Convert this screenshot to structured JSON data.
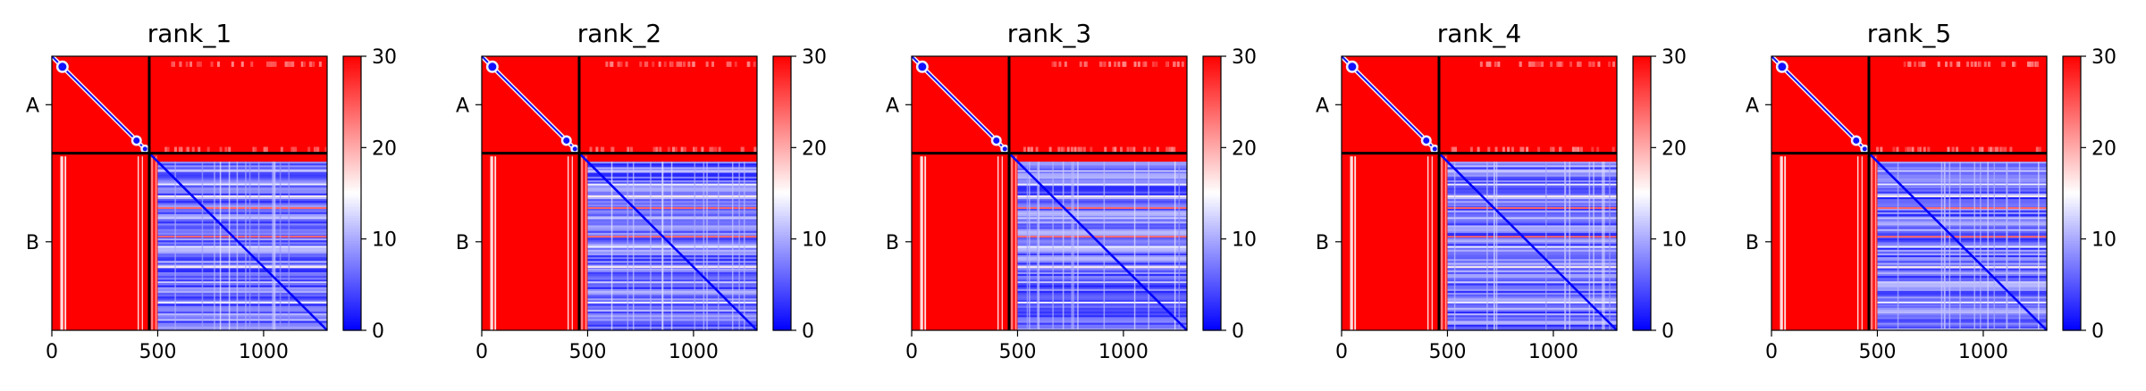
{
  "figure": {
    "type": "heatmap-grid",
    "background": "#ffffff"
  },
  "chart_data": [
    {
      "type": "heatmap",
      "title": "rank_1",
      "chains": [
        "A",
        "B"
      ],
      "chain_boundary": 460,
      "x_ticks": [
        0,
        500,
        1000
      ],
      "xlim": [
        0,
        1300
      ],
      "colorbar": {
        "min": 0,
        "max": 30,
        "ticks": [
          0,
          10,
          20,
          30
        ],
        "colormap": [
          "#0000ff",
          "#ffffff",
          "#ff0000"
        ]
      },
      "variant": 0
    },
    {
      "type": "heatmap",
      "title": "rank_2",
      "chains": [
        "A",
        "B"
      ],
      "chain_boundary": 460,
      "x_ticks": [
        0,
        500,
        1000
      ],
      "xlim": [
        0,
        1300
      ],
      "colorbar": {
        "min": 0,
        "max": 30,
        "ticks": [
          0,
          10,
          20,
          30
        ],
        "colormap": [
          "#0000ff",
          "#ffffff",
          "#ff0000"
        ]
      },
      "variant": 1
    },
    {
      "type": "heatmap",
      "title": "rank_3",
      "chains": [
        "A",
        "B"
      ],
      "chain_boundary": 460,
      "x_ticks": [
        0,
        500,
        1000
      ],
      "xlim": [
        0,
        1300
      ],
      "colorbar": {
        "min": 0,
        "max": 30,
        "ticks": [
          0,
          10,
          20,
          30
        ],
        "colormap": [
          "#0000ff",
          "#ffffff",
          "#ff0000"
        ]
      },
      "variant": 2
    },
    {
      "type": "heatmap",
      "title": "rank_4",
      "chains": [
        "A",
        "B"
      ],
      "chain_boundary": 460,
      "x_ticks": [
        0,
        500,
        1000
      ],
      "xlim": [
        0,
        1300
      ],
      "colorbar": {
        "min": 0,
        "max": 30,
        "ticks": [
          0,
          10,
          20,
          30
        ],
        "colormap": [
          "#0000ff",
          "#ffffff",
          "#ff0000"
        ]
      },
      "variant": 3
    },
    {
      "type": "heatmap",
      "title": "rank_5",
      "chains": [
        "A",
        "B"
      ],
      "chain_boundary": 460,
      "x_ticks": [
        0,
        500,
        1000
      ],
      "xlim": [
        0,
        1300
      ],
      "colorbar": {
        "min": 0,
        "max": 30,
        "ticks": [
          0,
          10,
          20,
          30
        ],
        "colormap": [
          "#0000ff",
          "#ffffff",
          "#ff0000"
        ]
      },
      "variant": 4
    }
  ]
}
